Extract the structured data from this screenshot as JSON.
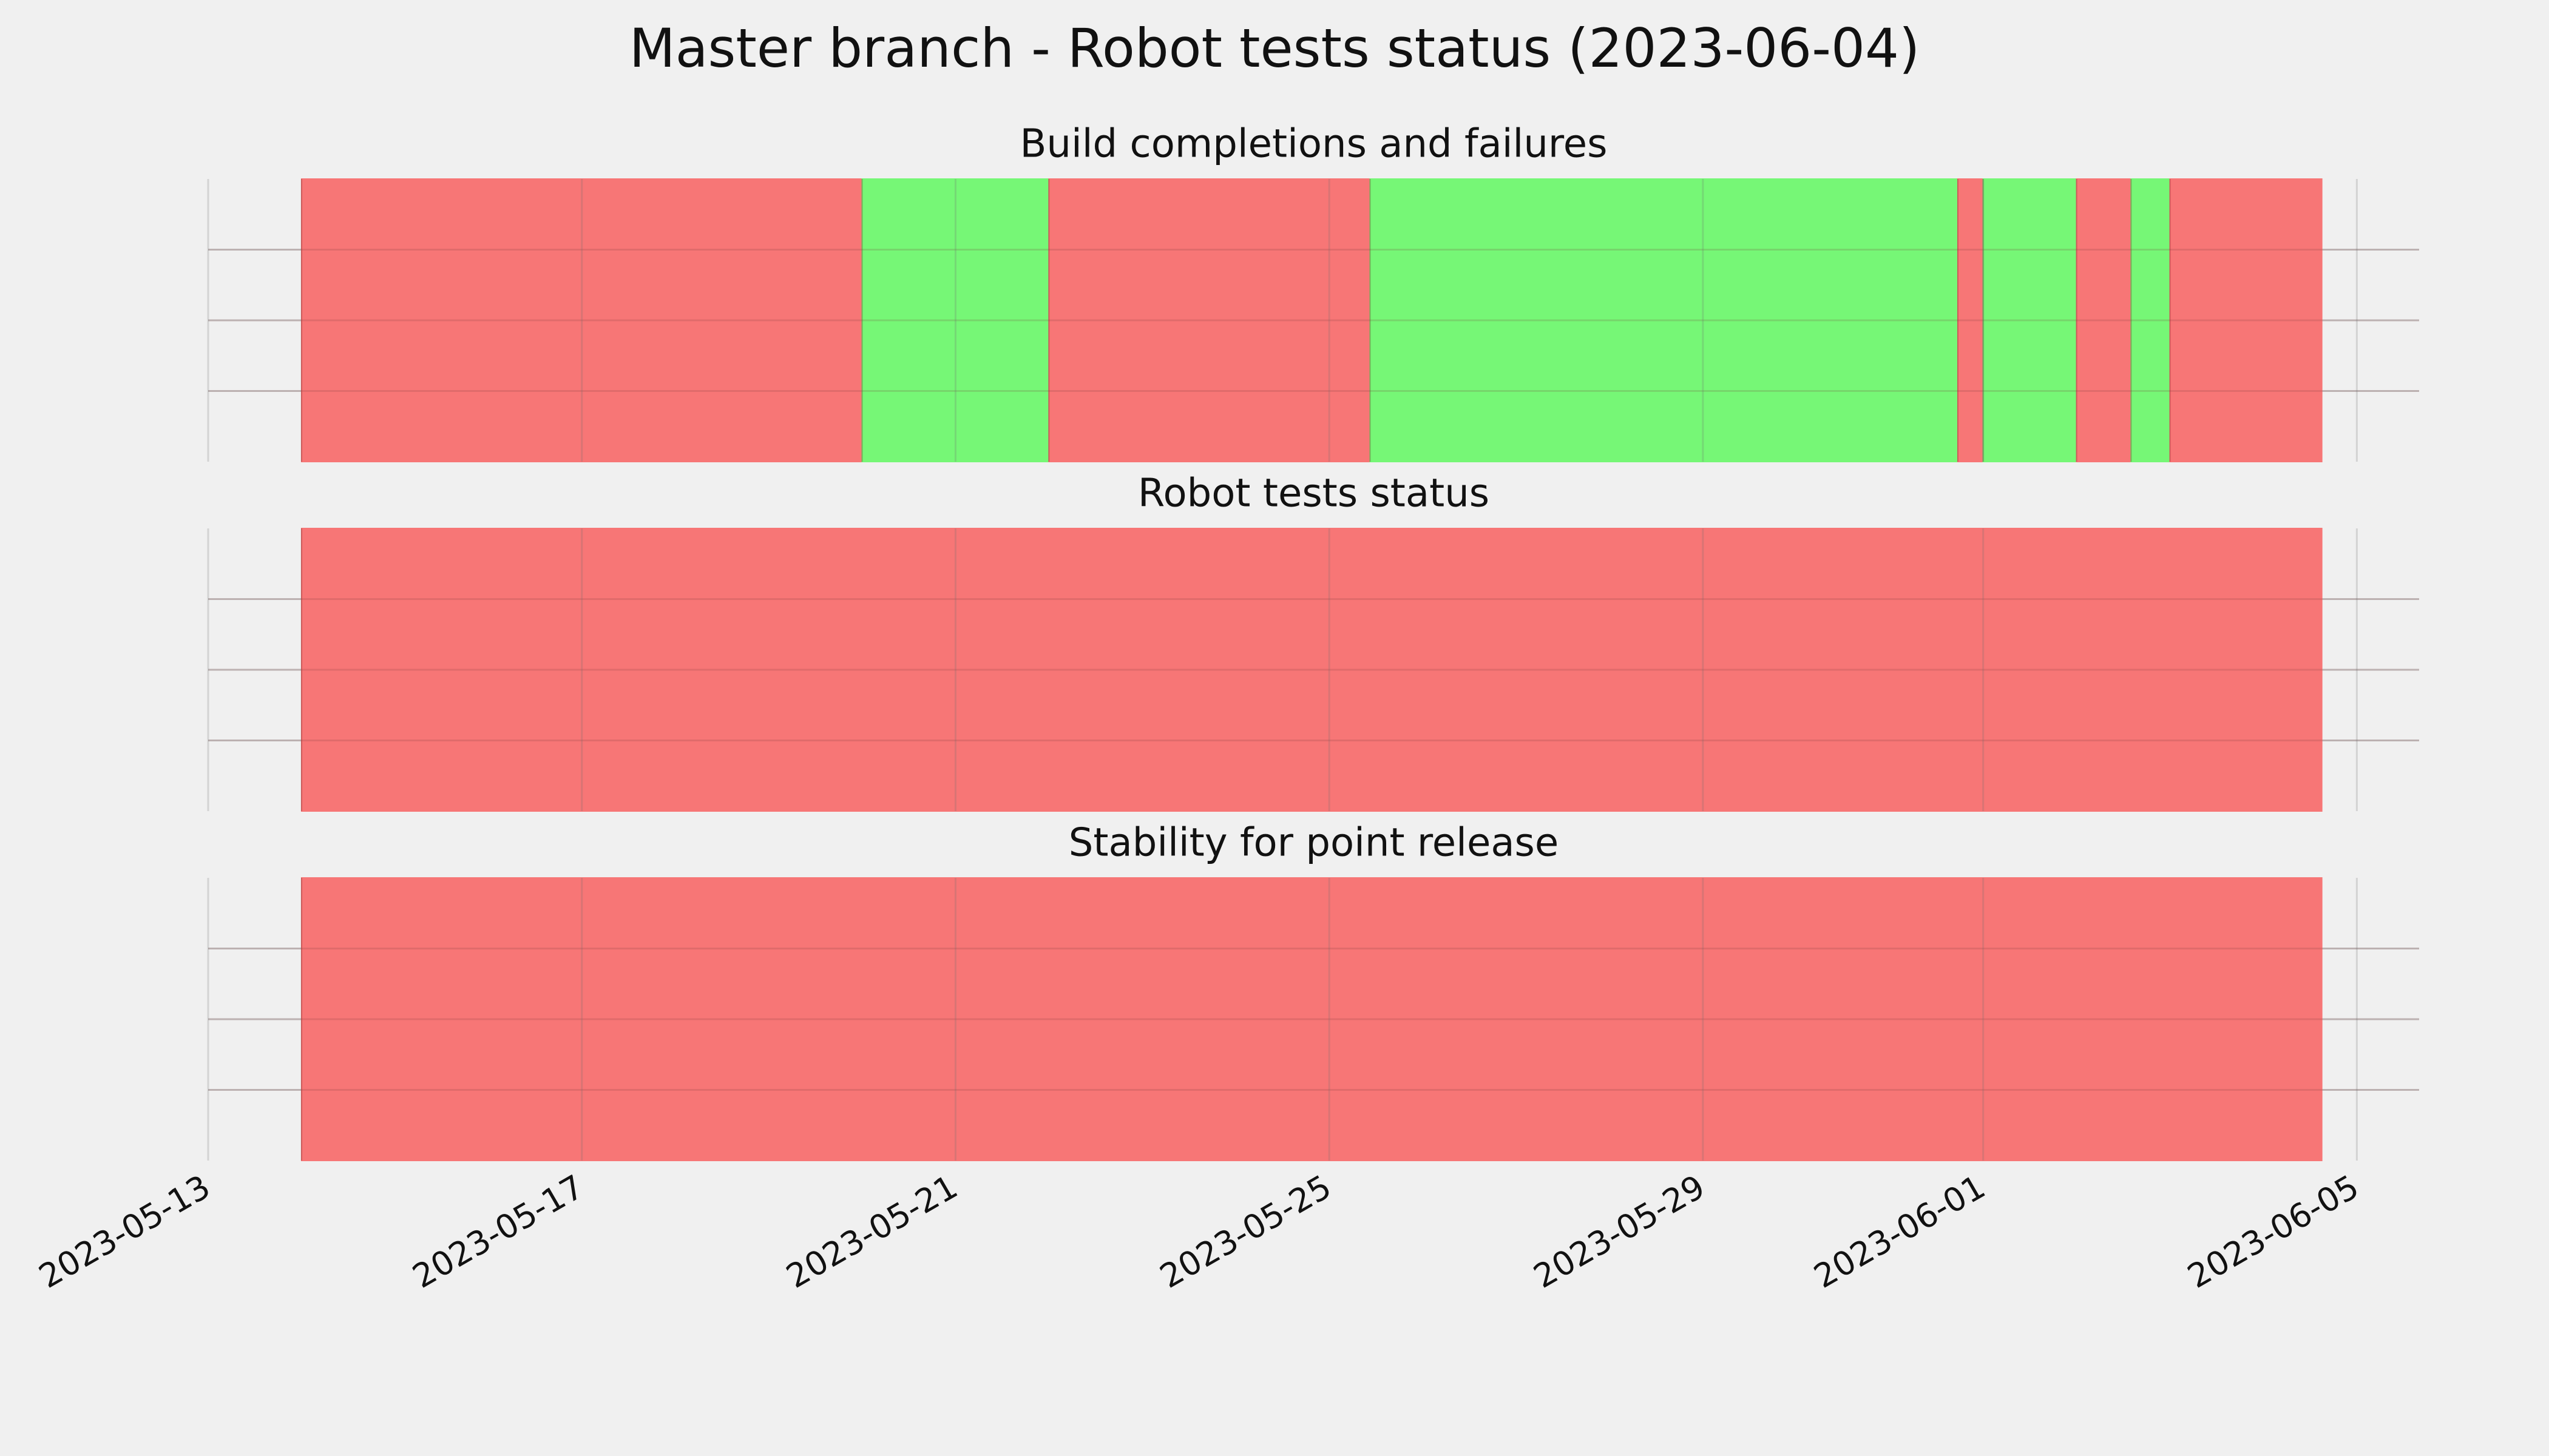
{
  "title": "Master branch - Robot tests status (2023-06-04)",
  "chart_data": [
    {
      "type": "timeline",
      "title": "Build completions and failures",
      "segments": [
        {
          "start": "2023-05-14T00:00",
          "end": "2023-05-20T00:00",
          "color": "#f77676"
        },
        {
          "start": "2023-05-20T00:00",
          "end": "2023-05-22T00:00",
          "color": "#76f776"
        },
        {
          "start": "2023-05-22T00:00",
          "end": "2023-05-25T10:30",
          "color": "#f77676"
        },
        {
          "start": "2023-05-25T10:30",
          "end": "2023-05-31T17:30",
          "color": "#76f776"
        },
        {
          "start": "2023-05-31T17:30",
          "end": "2023-06-01T00:00",
          "color": "#f77676"
        },
        {
          "start": "2023-06-01T00:00",
          "end": "2023-06-02T00:00",
          "color": "#76f776"
        },
        {
          "start": "2023-06-02T00:00",
          "end": "2023-06-02T14:00",
          "color": "#f77676"
        },
        {
          "start": "2023-06-02T14:00",
          "end": "2023-06-03T00:00",
          "color": "#76f776"
        },
        {
          "start": "2023-06-03T00:00",
          "end": "2023-06-04T15:00",
          "color": "#f77676"
        }
      ],
      "xlim": [
        "2023-05-13",
        "2023-06-05T16:00"
      ],
      "xticks": [
        "2023-05-13",
        "2023-05-17",
        "2023-05-21",
        "2023-05-25",
        "2023-05-29",
        "2023-06-01",
        "2023-06-05"
      ],
      "ylim": [
        0,
        4
      ],
      "yticks": [
        1,
        2,
        3
      ],
      "grid": true
    },
    {
      "type": "timeline",
      "title": "Robot tests status",
      "segments": [
        {
          "start": "2023-05-14T00:00",
          "end": "2023-06-04T15:00",
          "color": "#f77676"
        }
      ],
      "xlim": [
        "2023-05-13",
        "2023-06-05T16:00"
      ],
      "xticks": [
        "2023-05-13",
        "2023-05-17",
        "2023-05-21",
        "2023-05-25",
        "2023-05-29",
        "2023-06-01",
        "2023-06-05"
      ],
      "ylim": [
        0,
        4
      ],
      "yticks": [
        1,
        2,
        3
      ],
      "grid": true
    },
    {
      "type": "timeline",
      "title": "Stability for point release",
      "segments": [
        {
          "start": "2023-05-14T00:00",
          "end": "2023-06-04T15:00",
          "color": "#f77676"
        }
      ],
      "xlim": [
        "2023-05-13",
        "2023-06-05T16:00"
      ],
      "xticks": [
        "2023-05-13",
        "2023-05-17",
        "2023-05-21",
        "2023-05-25",
        "2023-05-29",
        "2023-06-01",
        "2023-06-05"
      ],
      "ylim": [
        0,
        4
      ],
      "yticks": [
        1,
        2,
        3
      ],
      "grid": true,
      "tick_labels": true
    }
  ]
}
